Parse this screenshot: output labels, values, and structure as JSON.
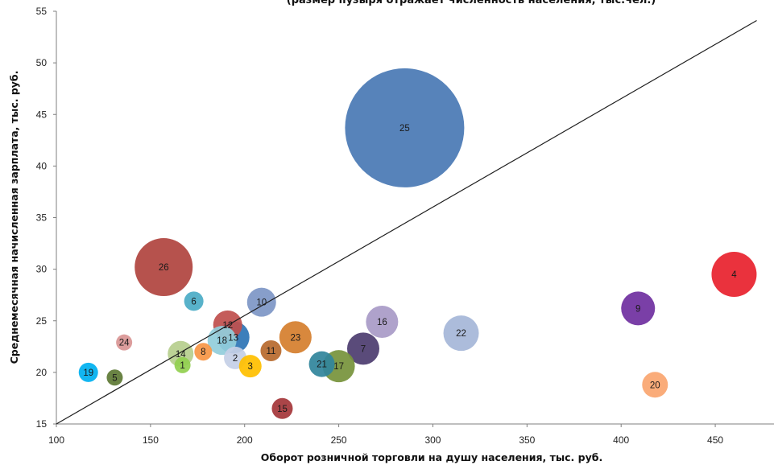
{
  "chart_data": {
    "type": "scatter",
    "subtype": "bubble",
    "title": "(размер пузыря отражает численность населения, тыс.чел.)",
    "xlabel": "Оборот розничной торговли на душу населения, тыс. руб.",
    "ylabel": "Среднемесячная начисленная зарплата, тыс. руб.",
    "xlim": [
      100,
      475
    ],
    "ylim": [
      15,
      55
    ],
    "xticks": [
      100,
      150,
      200,
      250,
      300,
      350,
      400,
      450
    ],
    "yticks": [
      15,
      20,
      25,
      30,
      35,
      40,
      45,
      50,
      55
    ],
    "grid": false,
    "legend": "none",
    "trendline": {
      "x": [
        100,
        472
      ],
      "y": [
        15,
        54.1
      ]
    },
    "points": [
      {
        "label": "1",
        "x": 167,
        "y": 20.7,
        "size": 10,
        "color": "#92D050"
      },
      {
        "label": "2",
        "x": 195,
        "y": 21.4,
        "size": 14,
        "color": "#C5D0E6"
      },
      {
        "label": "3",
        "x": 203,
        "y": 20.6,
        "size": 14,
        "color": "#FFC000"
      },
      {
        "label": "4",
        "x": 460,
        "y": 29.5,
        "size": 28,
        "color": "#E8222E"
      },
      {
        "label": "5",
        "x": 131,
        "y": 19.5,
        "size": 10,
        "color": "#5F7A36"
      },
      {
        "label": "6",
        "x": 173,
        "y": 26.9,
        "size": 12,
        "color": "#4BACC6"
      },
      {
        "label": "7",
        "x": 263,
        "y": 22.3,
        "size": 20,
        "color": "#4E3D70"
      },
      {
        "label": "8",
        "x": 178,
        "y": 22.0,
        "size": 11,
        "color": "#F79646"
      },
      {
        "label": "9",
        "x": 409,
        "y": 26.2,
        "size": 21,
        "color": "#7030A0"
      },
      {
        "label": "10",
        "x": 209,
        "y": 26.8,
        "size": 18,
        "color": "#7E97C6"
      },
      {
        "label": "11",
        "x": 214,
        "y": 22.1,
        "size": 13,
        "color": "#B86B2E"
      },
      {
        "label": "12",
        "x": 191,
        "y": 24.6,
        "size": 18,
        "color": "#C0504D"
      },
      {
        "label": "13",
        "x": 194,
        "y": 23.4,
        "size": 20,
        "color": "#2E75B6"
      },
      {
        "label": "14",
        "x": 166,
        "y": 21.8,
        "size": 16,
        "color": "#B7CF8E"
      },
      {
        "label": "15",
        "x": 220,
        "y": 16.5,
        "size": 13,
        "color": "#A5373A"
      },
      {
        "label": "16",
        "x": 273,
        "y": 24.9,
        "size": 20,
        "color": "#A99BC7"
      },
      {
        "label": "17",
        "x": 250,
        "y": 20.6,
        "size": 20,
        "color": "#77933C"
      },
      {
        "label": "18",
        "x": 188,
        "y": 23.1,
        "size": 18,
        "color": "#92CDDC"
      },
      {
        "label": "19",
        "x": 117,
        "y": 20.0,
        "size": 12,
        "color": "#00B0F0"
      },
      {
        "label": "20",
        "x": 418,
        "y": 18.8,
        "size": 16,
        "color": "#FAA670"
      },
      {
        "label": "21",
        "x": 241,
        "y": 20.8,
        "size": 16,
        "color": "#31859C"
      },
      {
        "label": "22",
        "x": 315,
        "y": 23.8,
        "size": 22,
        "color": "#A6B7D8"
      },
      {
        "label": "23",
        "x": 227,
        "y": 23.4,
        "size": 20,
        "color": "#D57F2E"
      },
      {
        "label": "24",
        "x": 136,
        "y": 22.9,
        "size": 10,
        "color": "#D99694"
      },
      {
        "label": "25",
        "x": 285,
        "y": 43.7,
        "size": 74,
        "color": "#4A7AB5"
      },
      {
        "label": "26",
        "x": 157,
        "y": 30.2,
        "size": 36,
        "color": "#B0453F"
      }
    ]
  }
}
